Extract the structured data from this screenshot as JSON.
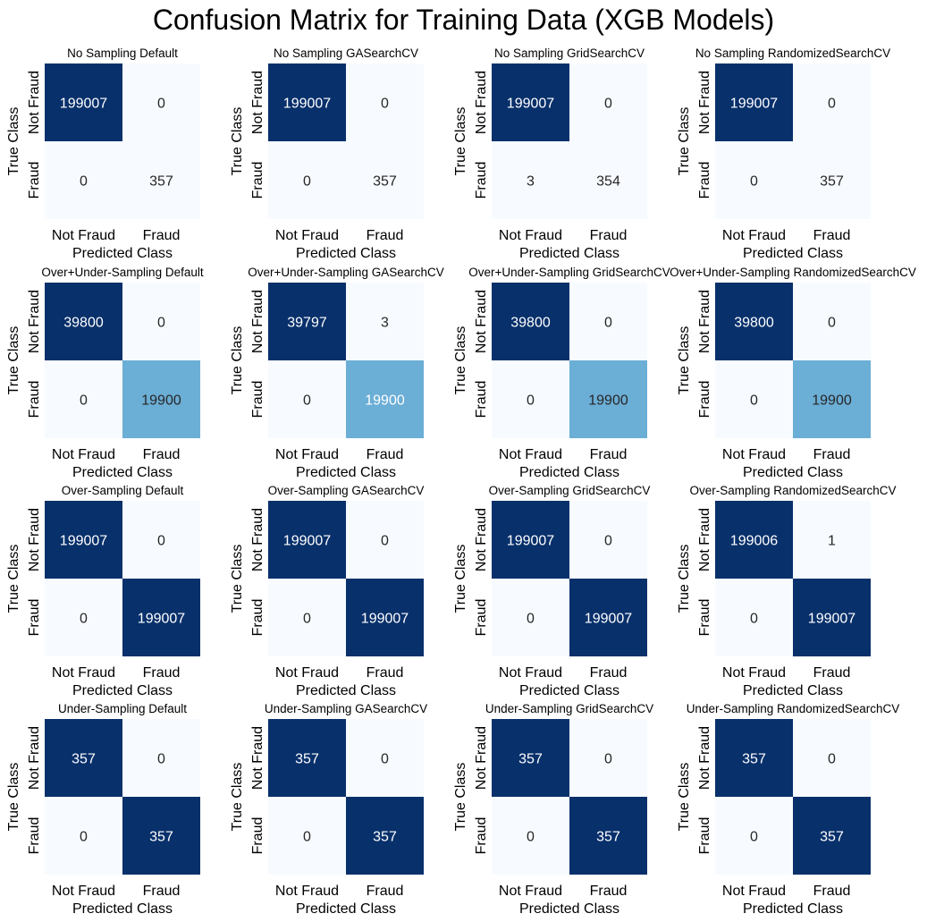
{
  "figure_title": "Confusion Matrix for Training Data (XGB Models)",
  "chart_data": [
    {
      "type": "heatmap",
      "title": "No Sampling Default",
      "xlabel": "Predicted Class",
      "ylabel": "True Class",
      "x_categories": [
        "Not Fraud",
        "Fraud"
      ],
      "y_categories": [
        "Not Fraud",
        "Fraud"
      ],
      "matrix": [
        [
          199007,
          0
        ],
        [
          0,
          357
        ]
      ]
    },
    {
      "type": "heatmap",
      "title": "No Sampling GASearchCV",
      "xlabel": "Predicted Class",
      "ylabel": "True Class",
      "x_categories": [
        "Not Fraud",
        "Fraud"
      ],
      "y_categories": [
        "Not Fraud",
        "Fraud"
      ],
      "matrix": [
        [
          199007,
          0
        ],
        [
          0,
          357
        ]
      ]
    },
    {
      "type": "heatmap",
      "title": "No Sampling GridSearchCV",
      "xlabel": "Predicted Class",
      "ylabel": "True Class",
      "x_categories": [
        "Not Fraud",
        "Fraud"
      ],
      "y_categories": [
        "Not Fraud",
        "Fraud"
      ],
      "matrix": [
        [
          199007,
          0
        ],
        [
          3,
          354
        ]
      ]
    },
    {
      "type": "heatmap",
      "title": "No Sampling RandomizedSearchCV",
      "xlabel": "Predicted Class",
      "ylabel": "True Class",
      "x_categories": [
        "Not Fraud",
        "Fraud"
      ],
      "y_categories": [
        "Not Fraud",
        "Fraud"
      ],
      "matrix": [
        [
          199007,
          0
        ],
        [
          0,
          357
        ]
      ]
    },
    {
      "type": "heatmap",
      "title": "Over+Under-Sampling Default",
      "xlabel": "Predicted Class",
      "ylabel": "True Class",
      "x_categories": [
        "Not Fraud",
        "Fraud"
      ],
      "y_categories": [
        "Not Fraud",
        "Fraud"
      ],
      "matrix": [
        [
          39800,
          0
        ],
        [
          0,
          19900
        ]
      ]
    },
    {
      "type": "heatmap",
      "title": "Over+Under-Sampling GASearchCV",
      "xlabel": "Predicted Class",
      "ylabel": "True Class",
      "x_categories": [
        "Not Fraud",
        "Fraud"
      ],
      "y_categories": [
        "Not Fraud",
        "Fraud"
      ],
      "matrix": [
        [
          39797,
          3
        ],
        [
          0,
          19900
        ]
      ]
    },
    {
      "type": "heatmap",
      "title": "Over+Under-Sampling GridSearchCV",
      "xlabel": "Predicted Class",
      "ylabel": "True Class",
      "x_categories": [
        "Not Fraud",
        "Fraud"
      ],
      "y_categories": [
        "Not Fraud",
        "Fraud"
      ],
      "matrix": [
        [
          39800,
          0
        ],
        [
          0,
          19900
        ]
      ]
    },
    {
      "type": "heatmap",
      "title": "Over+Under-Sampling RandomizedSearchCV",
      "xlabel": "Predicted Class",
      "ylabel": "True Class",
      "x_categories": [
        "Not Fraud",
        "Fraud"
      ],
      "y_categories": [
        "Not Fraud",
        "Fraud"
      ],
      "matrix": [
        [
          39800,
          0
        ],
        [
          0,
          19900
        ]
      ]
    },
    {
      "type": "heatmap",
      "title": "Over-Sampling Default",
      "xlabel": "Predicted Class",
      "ylabel": "True Class",
      "x_categories": [
        "Not Fraud",
        "Fraud"
      ],
      "y_categories": [
        "Not Fraud",
        "Fraud"
      ],
      "matrix": [
        [
          199007,
          0
        ],
        [
          0,
          199007
        ]
      ]
    },
    {
      "type": "heatmap",
      "title": "Over-Sampling GASearchCV",
      "xlabel": "Predicted Class",
      "ylabel": "True Class",
      "x_categories": [
        "Not Fraud",
        "Fraud"
      ],
      "y_categories": [
        "Not Fraud",
        "Fraud"
      ],
      "matrix": [
        [
          199007,
          0
        ],
        [
          0,
          199007
        ]
      ]
    },
    {
      "type": "heatmap",
      "title": "Over-Sampling GridSearchCV",
      "xlabel": "Predicted Class",
      "ylabel": "True Class",
      "x_categories": [
        "Not Fraud",
        "Fraud"
      ],
      "y_categories": [
        "Not Fraud",
        "Fraud"
      ],
      "matrix": [
        [
          199007,
          0
        ],
        [
          0,
          199007
        ]
      ]
    },
    {
      "type": "heatmap",
      "title": "Over-Sampling RandomizedSearchCV",
      "xlabel": "Predicted Class",
      "ylabel": "True Class",
      "x_categories": [
        "Not Fraud",
        "Fraud"
      ],
      "y_categories": [
        "Not Fraud",
        "Fraud"
      ],
      "matrix": [
        [
          199006,
          1
        ],
        [
          0,
          199007
        ]
      ]
    },
    {
      "type": "heatmap",
      "title": "Under-Sampling Default",
      "xlabel": "Predicted Class",
      "ylabel": "True Class",
      "x_categories": [
        "Not Fraud",
        "Fraud"
      ],
      "y_categories": [
        "Not Fraud",
        "Fraud"
      ],
      "matrix": [
        [
          357,
          0
        ],
        [
          0,
          357
        ]
      ]
    },
    {
      "type": "heatmap",
      "title": "Under-Sampling GASearchCV",
      "xlabel": "Predicted Class",
      "ylabel": "True Class",
      "x_categories": [
        "Not Fraud",
        "Fraud"
      ],
      "y_categories": [
        "Not Fraud",
        "Fraud"
      ],
      "matrix": [
        [
          357,
          0
        ],
        [
          0,
          357
        ]
      ]
    },
    {
      "type": "heatmap",
      "title": "Under-Sampling GridSearchCV",
      "xlabel": "Predicted Class",
      "ylabel": "True Class",
      "x_categories": [
        "Not Fraud",
        "Fraud"
      ],
      "y_categories": [
        "Not Fraud",
        "Fraud"
      ],
      "matrix": [
        [
          357,
          0
        ],
        [
          0,
          357
        ]
      ]
    },
    {
      "type": "heatmap",
      "title": "Under-Sampling RandomizedSearchCV",
      "xlabel": "Predicted Class",
      "ylabel": "True Class",
      "x_categories": [
        "Not Fraud",
        "Fraud"
      ],
      "y_categories": [
        "Not Fraud",
        "Fraud"
      ],
      "matrix": [
        [
          357,
          0
        ],
        [
          0,
          357
        ]
      ]
    }
  ],
  "colors": {
    "colormap": "Blues",
    "dark": "#08306b",
    "light": "#f7fbff",
    "text_on_dark": "#ffffff",
    "text_on_light": "#262626"
  }
}
